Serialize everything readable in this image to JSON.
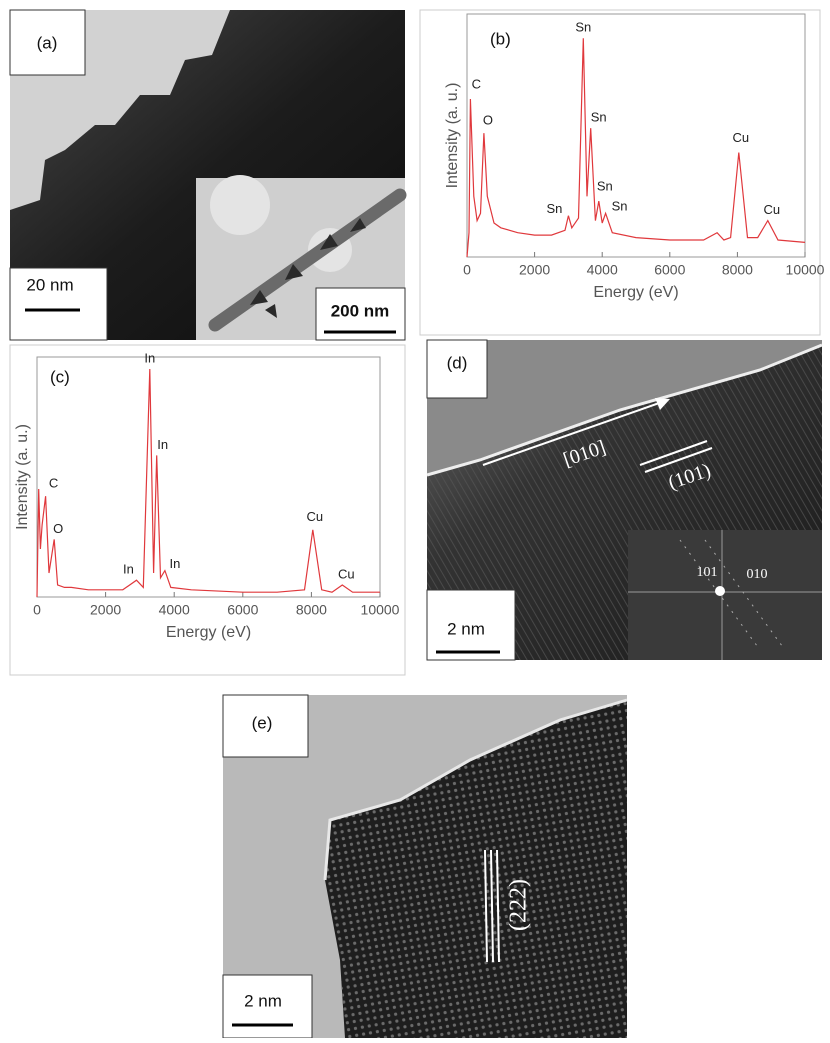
{
  "panels": {
    "a": {
      "label": "(a)",
      "scale_bar": "20 nm",
      "inset_scale_bar": "200 nm"
    },
    "d": {
      "label": "(d)",
      "scale_bar": "2 nm",
      "direction": "[010]",
      "planes": "(101)",
      "fft_labels": [
        "101",
        "010"
      ]
    },
    "e": {
      "label": "(e)",
      "scale_bar": "2 nm",
      "planes": "(222)"
    }
  },
  "chart_data": [
    {
      "type": "line",
      "panel_label": "(b)",
      "x_label": "Energy (eV)",
      "y_label": "Intensity (a. u.)",
      "xlim": [
        0,
        10000
      ],
      "xticks": [
        0,
        2000,
        4000,
        6000,
        8000,
        10000
      ],
      "ylim": [
        0,
        100
      ],
      "x": [
        0,
        60,
        100,
        200,
        300,
        400,
        500,
        600,
        800,
        1000,
        1500,
        2000,
        2500,
        2900,
        3000,
        3100,
        3300,
        3440,
        3550,
        3660,
        3800,
        3900,
        4000,
        4100,
        4300,
        5000,
        6000,
        7000,
        7400,
        7600,
        7800,
        8040,
        8300,
        8600,
        8900,
        9200,
        10000
      ],
      "series": [
        {
          "color": "#e0383c",
          "values": [
            0,
            10,
            65,
            25,
            15,
            18,
            51,
            25,
            14,
            12,
            10,
            9,
            9,
            11,
            17,
            12,
            16,
            90,
            25,
            53,
            15,
            23,
            14,
            18,
            10,
            8,
            7,
            7,
            10,
            7,
            8,
            43,
            8,
            8,
            15,
            7,
            6
          ]
        }
      ],
      "annotations": [
        {
          "text": "C",
          "x": 100
        },
        {
          "text": "O",
          "x": 500
        },
        {
          "text": "Sn",
          "x": 3440
        },
        {
          "text": "Sn",
          "x": 3660
        },
        {
          "text": "Sn",
          "x": 3000
        },
        {
          "text": "Sn",
          "x": 3900
        },
        {
          "text": "Sn",
          "x": 4100
        },
        {
          "text": "Cu",
          "x": 8040
        },
        {
          "text": "Cu",
          "x": 8900
        }
      ]
    },
    {
      "type": "line",
      "panel_label": "(c)",
      "x_label": "Energy (eV)",
      "y_label": "Intensity (a. u.)",
      "xlim": [
        0,
        10000
      ],
      "xticks": [
        0,
        2000,
        4000,
        6000,
        8000,
        10000
      ],
      "ylim": [
        0,
        100
      ],
      "x": [
        0,
        50,
        100,
        150,
        250,
        350,
        500,
        600,
        800,
        1000,
        1500,
        2000,
        2500,
        2900,
        3100,
        3290,
        3400,
        3490,
        3600,
        3730,
        3900,
        4500,
        6000,
        7000,
        7800,
        8040,
        8300,
        8600,
        8900,
        9200,
        10000
      ],
      "series": [
        {
          "color": "#e0383c",
          "values": [
            0,
            45,
            20,
            30,
            42,
            10,
            24,
            5,
            4,
            4,
            3,
            3,
            3,
            7,
            4,
            95,
            10,
            59,
            8,
            11,
            4,
            3,
            2,
            2,
            3,
            28,
            3,
            2,
            5,
            2,
            2
          ]
        }
      ],
      "annotations": [
        {
          "text": "C",
          "x": 250
        },
        {
          "text": "O",
          "x": 500
        },
        {
          "text": "In",
          "x": 3290
        },
        {
          "text": "In",
          "x": 3490
        },
        {
          "text": "In",
          "x": 2900
        },
        {
          "text": "In",
          "x": 3730
        },
        {
          "text": "Cu",
          "x": 8040
        },
        {
          "text": "Cu",
          "x": 8900
        }
      ]
    }
  ]
}
